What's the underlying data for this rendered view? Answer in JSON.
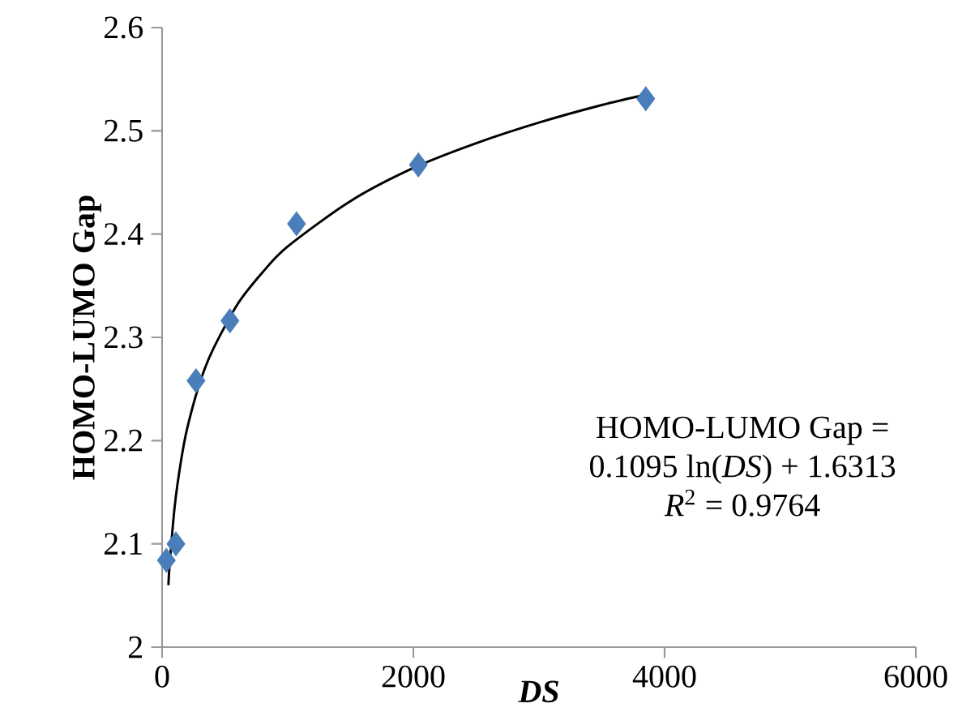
{
  "chart_data": {
    "type": "scatter",
    "xlabel": "DS",
    "ylabel": "HOMO-LUMO Gap",
    "xlim": [
      0,
      6000
    ],
    "ylim": [
      2,
      2.6
    ],
    "xticks": [
      0,
      2000,
      4000,
      6000
    ],
    "yticks": [
      2,
      2.1,
      2.2,
      2.3,
      2.4,
      2.5,
      2.6
    ],
    "grid": false,
    "marker": "diamond",
    "series": [
      {
        "color": "#4a7ebb",
        "x": [
          34,
          110,
          270,
          540,
          1070,
          2040,
          3850
        ],
        "values": [
          2.084,
          2.1,
          2.258,
          2.316,
          2.41,
          2.467,
          2.531
        ]
      },
      {
        "type": "line",
        "color": "#000000",
        "marker": "none",
        "line_style": "solid",
        "x": [
          50,
          60,
          100,
          150,
          200,
          300,
          400,
          600,
          800,
          1000,
          1500,
          2000,
          2500,
          3000,
          3500,
          3850
        ],
        "values": [
          2.06,
          2.08,
          2.136,
          2.18,
          2.212,
          2.256,
          2.287,
          2.332,
          2.363,
          2.388,
          2.432,
          2.464,
          2.488,
          2.508,
          2.525,
          2.535
        ]
      }
    ],
    "annotations": [
      "HOMO-LUMO Gap =",
      "0.1095 ln(*DS*) + 1.6313",
      "*R*$^{2}$ = 0.9764"
    ]
  }
}
